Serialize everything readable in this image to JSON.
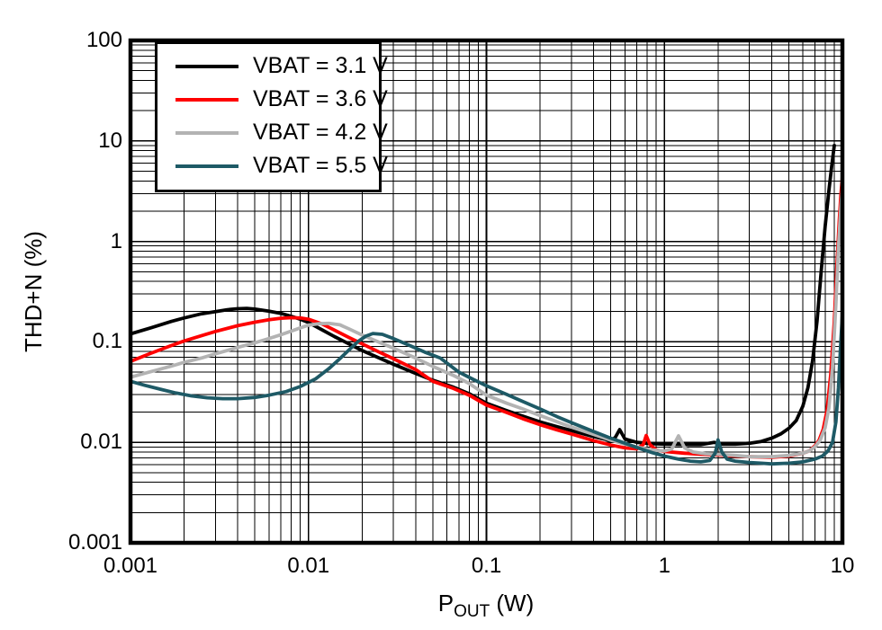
{
  "chart_data": {
    "type": "line",
    "title": "",
    "x_scale": "log",
    "y_scale": "log",
    "xlim": [
      0.001,
      10
    ],
    "ylim": [
      0.001,
      100
    ],
    "grid": "on-log-major-and-minor",
    "grid_color": "#000000",
    "legend_position": "top-left-inside",
    "ylabel": "THD+N (%)",
    "xlabel_parts": {
      "base": "P",
      "sub": "OUT",
      "rest": " (W)"
    },
    "xticks": [
      {
        "value": 0.001,
        "label": "0.001"
      },
      {
        "value": 0.01,
        "label": "0.01"
      },
      {
        "value": 0.1,
        "label": "0.1"
      },
      {
        "value": 1,
        "label": "1"
      },
      {
        "value": 10,
        "label": "10"
      }
    ],
    "yticks": [
      {
        "value": 100,
        "label": "100"
      },
      {
        "value": 10,
        "label": "10"
      },
      {
        "value": 1,
        "label": "1"
      },
      {
        "value": 0.1,
        "label": "0.1"
      },
      {
        "value": 0.01,
        "label": "0.01"
      },
      {
        "value": 0.001,
        "label": "0.001"
      }
    ],
    "series": [
      {
        "name": "VBAT = 3.1 V",
        "color": "#000000",
        "points": [
          [
            0.001,
            0.12
          ],
          [
            0.0013,
            0.138
          ],
          [
            0.0017,
            0.16
          ],
          [
            0.002,
            0.173
          ],
          [
            0.0025,
            0.19
          ],
          [
            0.003,
            0.2
          ],
          [
            0.0035,
            0.209
          ],
          [
            0.004,
            0.214
          ],
          [
            0.0045,
            0.215
          ],
          [
            0.005,
            0.212
          ],
          [
            0.006,
            0.202
          ],
          [
            0.007,
            0.192
          ],
          [
            0.008,
            0.18
          ],
          [
            0.009,
            0.168
          ],
          [
            0.01,
            0.156
          ],
          [
            0.012,
            0.131
          ],
          [
            0.014,
            0.113
          ],
          [
            0.017,
            0.095
          ],
          [
            0.02,
            0.082
          ],
          [
            0.025,
            0.069
          ],
          [
            0.03,
            0.06
          ],
          [
            0.04,
            0.0485
          ],
          [
            0.05,
            0.0415
          ],
          [
            0.065,
            0.0355
          ],
          [
            0.08,
            0.0305
          ],
          [
            0.1,
            0.0245
          ],
          [
            0.13,
            0.0207
          ],
          [
            0.16,
            0.0182
          ],
          [
            0.2,
            0.016
          ],
          [
            0.25,
            0.0143
          ],
          [
            0.3,
            0.0131
          ],
          [
            0.4,
            0.0114
          ],
          [
            0.5,
            0.0104
          ],
          [
            0.53,
            0.0112
          ],
          [
            0.56,
            0.0134
          ],
          [
            0.6,
            0.0108
          ],
          [
            0.7,
            0.01
          ],
          [
            0.85,
            0.0097
          ],
          [
            1.0,
            0.0096
          ],
          [
            1.3,
            0.0095
          ],
          [
            1.6,
            0.0095
          ],
          [
            1.9,
            0.01
          ],
          [
            2.1,
            0.0096
          ],
          [
            2.5,
            0.0096
          ],
          [
            3.0,
            0.0098
          ],
          [
            3.5,
            0.0102
          ],
          [
            4.0,
            0.011
          ],
          [
            4.5,
            0.0121
          ],
          [
            5.0,
            0.0138
          ],
          [
            5.5,
            0.0165
          ],
          [
            6.0,
            0.023
          ],
          [
            6.4,
            0.035
          ],
          [
            6.8,
            0.065
          ],
          [
            7.2,
            0.16
          ],
          [
            7.6,
            0.5
          ],
          [
            8.0,
            1.4
          ],
          [
            8.4,
            3.2
          ],
          [
            8.7,
            5.5
          ],
          [
            9.0,
            9.0
          ]
        ]
      },
      {
        "name": "VBAT = 3.6 V",
        "color": "#ff0000",
        "points": [
          [
            0.001,
            0.064
          ],
          [
            0.0013,
            0.077
          ],
          [
            0.0017,
            0.092
          ],
          [
            0.002,
            0.102
          ],
          [
            0.0025,
            0.115
          ],
          [
            0.003,
            0.127
          ],
          [
            0.004,
            0.145
          ],
          [
            0.005,
            0.157
          ],
          [
            0.006,
            0.166
          ],
          [
            0.007,
            0.172
          ],
          [
            0.008,
            0.174
          ],
          [
            0.009,
            0.173
          ],
          [
            0.01,
            0.168
          ],
          [
            0.012,
            0.15
          ],
          [
            0.014,
            0.131
          ],
          [
            0.017,
            0.11
          ],
          [
            0.02,
            0.0955
          ],
          [
            0.025,
            0.079
          ],
          [
            0.03,
            0.068
          ],
          [
            0.04,
            0.053
          ],
          [
            0.05,
            0.0405
          ],
          [
            0.065,
            0.0345
          ],
          [
            0.08,
            0.0295
          ],
          [
            0.1,
            0.0235
          ],
          [
            0.13,
            0.0198
          ],
          [
            0.16,
            0.0172
          ],
          [
            0.2,
            0.015
          ],
          [
            0.25,
            0.0133
          ],
          [
            0.3,
            0.0121
          ],
          [
            0.4,
            0.0104
          ],
          [
            0.5,
            0.0094
          ],
          [
            0.6,
            0.0088
          ],
          [
            0.7,
            0.0086
          ],
          [
            0.76,
            0.0095
          ],
          [
            0.79,
            0.0117
          ],
          [
            0.83,
            0.0095
          ],
          [
            0.9,
            0.0084
          ],
          [
            1.0,
            0.0081
          ],
          [
            1.3,
            0.0078
          ],
          [
            1.6,
            0.0076
          ],
          [
            2.0,
            0.0075
          ],
          [
            2.5,
            0.0073
          ],
          [
            3.0,
            0.0072
          ],
          [
            4.0,
            0.0071
          ],
          [
            5.0,
            0.0073
          ],
          [
            6.0,
            0.0078
          ],
          [
            6.5,
            0.0082
          ],
          [
            7.0,
            0.0092
          ],
          [
            7.4,
            0.0105
          ],
          [
            7.8,
            0.0135
          ],
          [
            8.2,
            0.021
          ],
          [
            8.6,
            0.047
          ],
          [
            9.0,
            0.16
          ],
          [
            9.3,
            0.55
          ],
          [
            9.6,
            1.6
          ],
          [
            9.8,
            2.9
          ],
          [
            10,
            4.4
          ]
        ]
      },
      {
        "name": "VBAT = 4.2 V",
        "color": "#b3b3b3",
        "points": [
          [
            0.001,
            0.0445
          ],
          [
            0.0013,
            0.0505
          ],
          [
            0.0017,
            0.0575
          ],
          [
            0.002,
            0.0625
          ],
          [
            0.0025,
            0.069
          ],
          [
            0.003,
            0.076
          ],
          [
            0.004,
            0.088
          ],
          [
            0.005,
            0.098
          ],
          [
            0.006,
            0.108
          ],
          [
            0.007,
            0.118
          ],
          [
            0.008,
            0.128
          ],
          [
            0.009,
            0.138
          ],
          [
            0.01,
            0.147
          ],
          [
            0.0115,
            0.152
          ],
          [
            0.013,
            0.153
          ],
          [
            0.015,
            0.148
          ],
          [
            0.017,
            0.134
          ],
          [
            0.02,
            0.117
          ],
          [
            0.025,
            0.099
          ],
          [
            0.03,
            0.0865
          ],
          [
            0.04,
            0.069
          ],
          [
            0.05,
            0.057
          ],
          [
            0.065,
            0.0465
          ],
          [
            0.08,
            0.0385
          ],
          [
            0.1,
            0.0295
          ],
          [
            0.13,
            0.0245
          ],
          [
            0.16,
            0.0215
          ],
          [
            0.2,
            0.0185
          ],
          [
            0.25,
            0.016
          ],
          [
            0.3,
            0.0142
          ],
          [
            0.4,
            0.012
          ],
          [
            0.5,
            0.0105
          ],
          [
            0.6,
            0.0096
          ],
          [
            0.7,
            0.009
          ],
          [
            0.85,
            0.0084
          ],
          [
            1.0,
            0.0082
          ],
          [
            1.1,
            0.0086
          ],
          [
            1.2,
            0.0116
          ],
          [
            1.3,
            0.0088
          ],
          [
            1.45,
            0.008
          ],
          [
            1.7,
            0.0077
          ],
          [
            2.0,
            0.0076
          ],
          [
            2.5,
            0.0074
          ],
          [
            3.0,
            0.0072
          ],
          [
            4.0,
            0.0072
          ],
          [
            5.0,
            0.0074
          ],
          [
            6.0,
            0.0078
          ],
          [
            6.5,
            0.0082
          ],
          [
            7.0,
            0.009
          ],
          [
            7.5,
            0.0105
          ],
          [
            8.0,
            0.014
          ],
          [
            8.4,
            0.022
          ],
          [
            8.8,
            0.055
          ],
          [
            9.2,
            0.24
          ],
          [
            9.5,
            0.85
          ],
          [
            9.8,
            2.2
          ],
          [
            10,
            3.5
          ]
        ]
      },
      {
        "name": "VBAT = 5.5 V",
        "color": "#1e5a66",
        "points": [
          [
            0.001,
            0.0405
          ],
          [
            0.0012,
            0.037
          ],
          [
            0.0015,
            0.0335
          ],
          [
            0.0018,
            0.031
          ],
          [
            0.0022,
            0.029
          ],
          [
            0.0027,
            0.0278
          ],
          [
            0.0033,
            0.0272
          ],
          [
            0.004,
            0.0272
          ],
          [
            0.005,
            0.028
          ],
          [
            0.006,
            0.0295
          ],
          [
            0.0075,
            0.032
          ],
          [
            0.009,
            0.036
          ],
          [
            0.011,
            0.043
          ],
          [
            0.013,
            0.054
          ],
          [
            0.015,
            0.068
          ],
          [
            0.017,
            0.084
          ],
          [
            0.019,
            0.101
          ],
          [
            0.021,
            0.114
          ],
          [
            0.023,
            0.121
          ],
          [
            0.026,
            0.119
          ],
          [
            0.03,
            0.108
          ],
          [
            0.037,
            0.092
          ],
          [
            0.045,
            0.079
          ],
          [
            0.055,
            0.069
          ],
          [
            0.07,
            0.05
          ],
          [
            0.085,
            0.042
          ],
          [
            0.1,
            0.0365
          ],
          [
            0.13,
            0.03
          ],
          [
            0.16,
            0.0255
          ],
          [
            0.2,
            0.0215
          ],
          [
            0.25,
            0.018
          ],
          [
            0.3,
            0.0157
          ],
          [
            0.4,
            0.0128
          ],
          [
            0.5,
            0.011
          ],
          [
            0.6,
            0.0098
          ],
          [
            0.7,
            0.0089
          ],
          [
            0.85,
            0.0079
          ],
          [
            1.0,
            0.0073
          ],
          [
            1.2,
            0.0068
          ],
          [
            1.4,
            0.0065
          ],
          [
            1.6,
            0.0064
          ],
          [
            1.8,
            0.0066
          ],
          [
            1.93,
            0.0078
          ],
          [
            2.0,
            0.0106
          ],
          [
            2.1,
            0.008
          ],
          [
            2.25,
            0.0068
          ],
          [
            2.5,
            0.0065
          ],
          [
            3.0,
            0.0063
          ],
          [
            3.5,
            0.0062
          ],
          [
            4.0,
            0.0061
          ],
          [
            5.0,
            0.0062
          ],
          [
            6.0,
            0.0064
          ],
          [
            7.0,
            0.0068
          ],
          [
            7.7,
            0.0073
          ],
          [
            8.3,
            0.0082
          ],
          [
            8.8,
            0.01
          ],
          [
            9.2,
            0.016
          ],
          [
            9.5,
            0.035
          ],
          [
            9.75,
            0.085
          ],
          [
            10,
            0.19
          ]
        ]
      }
    ]
  }
}
